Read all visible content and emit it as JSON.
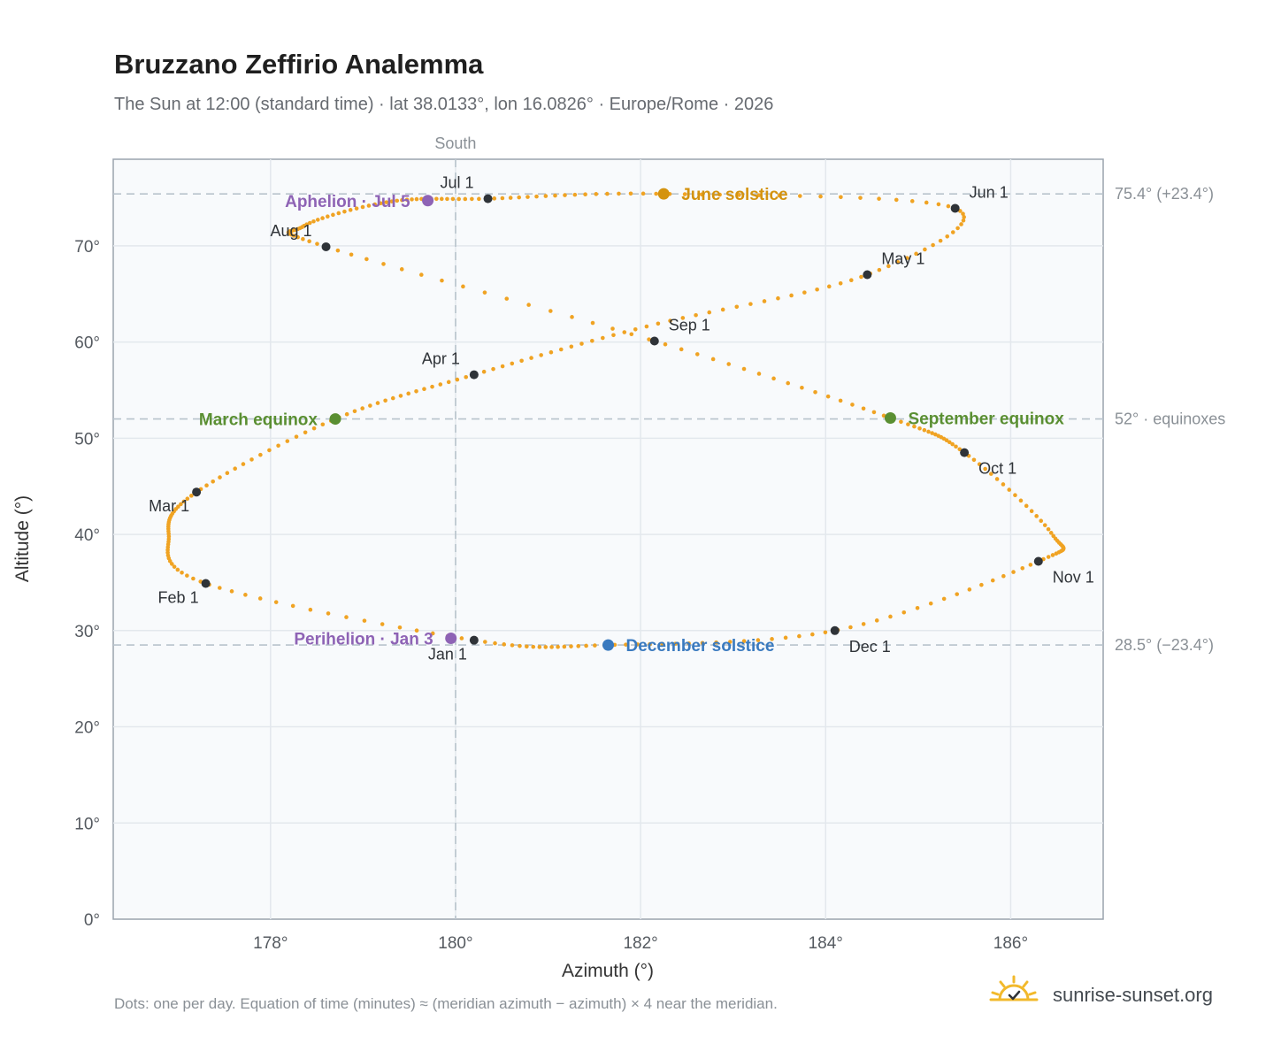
{
  "header": {
    "title": "Bruzzano Zeffirio Analemma",
    "subtitle": "The Sun at 12:00 (standard time) · lat 38.0133°, lon 16.0826° · Europe/Rome · 2026"
  },
  "footer": {
    "note": "Dots: one per day. Equation of time (minutes) ≈ (meridian azimuth − azimuth) × 4 near the meridian.",
    "brand": "sunrise-sunset.org",
    "brand_icon": "sun-check-logo-icon"
  },
  "colors": {
    "analemma": "#f0a323",
    "month_marker": "#2f3338",
    "june_solstice": "#d4930f",
    "december_solstice": "#3a7abf",
    "equinox": "#5a8f32",
    "aphelion_perihelion": "#8e63b5",
    "reference_line": "#b8c3cc"
  },
  "chart_data": {
    "type": "scatter",
    "xlabel": "Azimuth (°)",
    "ylabel": "Altitude (°)",
    "xlim": [
      176.3,
      187.0
    ],
    "ylim": [
      0,
      79
    ],
    "x_ticks": [
      178,
      180,
      182,
      184,
      186
    ],
    "x_tick_labels": [
      "178°",
      "180°",
      "182°",
      "184°",
      "186°"
    ],
    "y_ticks": [
      0,
      10,
      20,
      30,
      40,
      50,
      60,
      70
    ],
    "y_tick_labels": [
      "0°",
      "10°",
      "20°",
      "30°",
      "40°",
      "50°",
      "60°",
      "70°"
    ],
    "grid": true,
    "meridian": {
      "azimuth": 180,
      "label": "South"
    },
    "reference_lines": [
      {
        "altitude": 75.4,
        "label": "75.4° (+23.4°)"
      },
      {
        "altitude": 52,
        "label": "52° · equinoxes"
      },
      {
        "altitude": 28.5,
        "label": "28.5° (−23.4°)"
      }
    ],
    "analemma_trace": {
      "description_source": "one dot per day",
      "key_points": [
        {
          "date": "Jan 1",
          "azimuth": 180.2,
          "altitude": 29.0
        },
        {
          "date": "Feb 1",
          "azimuth": 177.3,
          "altitude": 34.9
        },
        {
          "date": "Mar 1",
          "azimuth": 177.2,
          "altitude": 44.4
        },
        {
          "date": "Apr 1",
          "azimuth": 180.2,
          "altitude": 56.6
        },
        {
          "date": "May 1",
          "azimuth": 184.45,
          "altitude": 67.0
        },
        {
          "date": "Jun 1",
          "azimuth": 185.4,
          "altitude": 73.9
        },
        {
          "date": "Jul 1",
          "azimuth": 180.35,
          "altitude": 74.9
        },
        {
          "date": "Aug 1",
          "azimuth": 178.6,
          "altitude": 69.9
        },
        {
          "date": "Sep 1",
          "azimuth": 182.15,
          "altitude": 60.1
        },
        {
          "date": "Oct 1",
          "azimuth": 185.5,
          "altitude": 48.5
        },
        {
          "date": "Nov 1",
          "azimuth": 186.3,
          "altitude": 37.2
        },
        {
          "date": "Dec 1",
          "azimuth": 184.1,
          "altitude": 30.0
        }
      ],
      "extremes": {
        "west_azimuth": 176.9,
        "east_azimuth": 186.45,
        "north_loop_west": 178.35,
        "north_loop_east": 185.9,
        "peak_altitude": 75.4
      }
    },
    "month_markers": [
      {
        "label": "Jan 1",
        "azimuth": 180.2,
        "altitude": 29.0,
        "label_pos": "below-left"
      },
      {
        "label": "Feb 1",
        "azimuth": 177.3,
        "altitude": 34.9,
        "label_pos": "below-left"
      },
      {
        "label": "Mar 1",
        "azimuth": 177.2,
        "altitude": 44.4,
        "label_pos": "below-left"
      },
      {
        "label": "Apr 1",
        "azimuth": 180.2,
        "altitude": 56.6,
        "label_pos": "above-left"
      },
      {
        "label": "May 1",
        "azimuth": 184.45,
        "altitude": 67.0,
        "label_pos": "above-right"
      },
      {
        "label": "Jun 1",
        "azimuth": 185.4,
        "altitude": 73.9,
        "label_pos": "above-right"
      },
      {
        "label": "Jul 1",
        "azimuth": 180.35,
        "altitude": 74.9,
        "label_pos": "above-left"
      },
      {
        "label": "Aug 1",
        "azimuth": 178.6,
        "altitude": 69.9,
        "label_pos": "above-left"
      },
      {
        "label": "Sep 1",
        "azimuth": 182.15,
        "altitude": 60.1,
        "label_pos": "above-right"
      },
      {
        "label": "Oct 1",
        "azimuth": 185.5,
        "altitude": 48.5,
        "label_pos": "below-right"
      },
      {
        "label": "Nov 1",
        "azimuth": 186.3,
        "altitude": 37.2,
        "label_pos": "below-right"
      },
      {
        "label": "Dec 1",
        "azimuth": 184.1,
        "altitude": 30.0,
        "label_pos": "below-right"
      }
    ],
    "events": [
      {
        "label": "June solstice",
        "azimuth": 182.25,
        "altitude": 75.4,
        "color": "#d4930f",
        "label_side": "right"
      },
      {
        "label": "December solstice",
        "azimuth": 181.65,
        "altitude": 28.5,
        "color": "#3a7abf",
        "label_side": "right"
      },
      {
        "label": "March equinox",
        "azimuth": 178.7,
        "altitude": 52.0,
        "color": "#5a8f32",
        "label_side": "left"
      },
      {
        "label": "September equinox",
        "azimuth": 184.7,
        "altitude": 52.1,
        "color": "#5a8f32",
        "label_side": "right"
      },
      {
        "label": "Aphelion · Jul 5",
        "azimuth": 179.7,
        "altitude": 74.7,
        "color": "#8e63b5",
        "label_side": "left"
      },
      {
        "label": "Perihelion · Jan 3",
        "azimuth": 179.95,
        "altitude": 29.2,
        "color": "#8e63b5",
        "label_side": "left"
      }
    ]
  }
}
